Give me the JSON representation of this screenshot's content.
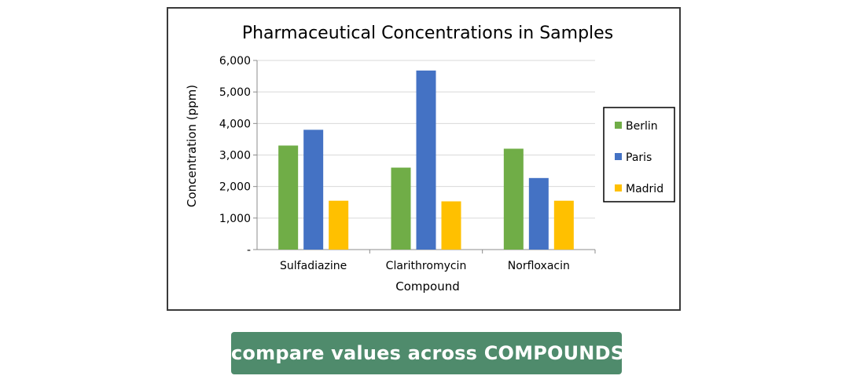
{
  "chart_data": {
    "type": "bar",
    "title": "Pharmaceutical Concentrations in Samples",
    "xlabel": "Compound",
    "ylabel": "Concentration (ppm)",
    "categories": [
      "Sulfadiazine",
      "Clarithromycin",
      "Norfloxacin"
    ],
    "series": [
      {
        "name": "Berlin",
        "color": "#70ad47",
        "values": [
          3300,
          2600,
          3200
        ]
      },
      {
        "name": "Paris",
        "color": "#4472c4",
        "values": [
          3800,
          5680,
          2270
        ]
      },
      {
        "name": "Madrid",
        "color": "#ffc000",
        "values": [
          1550,
          1530,
          1550
        ]
      }
    ],
    "ylim": [
      0,
      6000
    ],
    "yticks": [
      0,
      1000,
      2000,
      3000,
      4000,
      5000,
      6000
    ],
    "ytick_labels": [
      "-",
      "1,000",
      "2,000",
      "3,000",
      "4,000",
      "5,000",
      "6,000"
    ],
    "grid": true,
    "legend_position": "right"
  },
  "caption": {
    "label": "compare values across COMPOUNDS",
    "color": "#4f8b6c"
  }
}
